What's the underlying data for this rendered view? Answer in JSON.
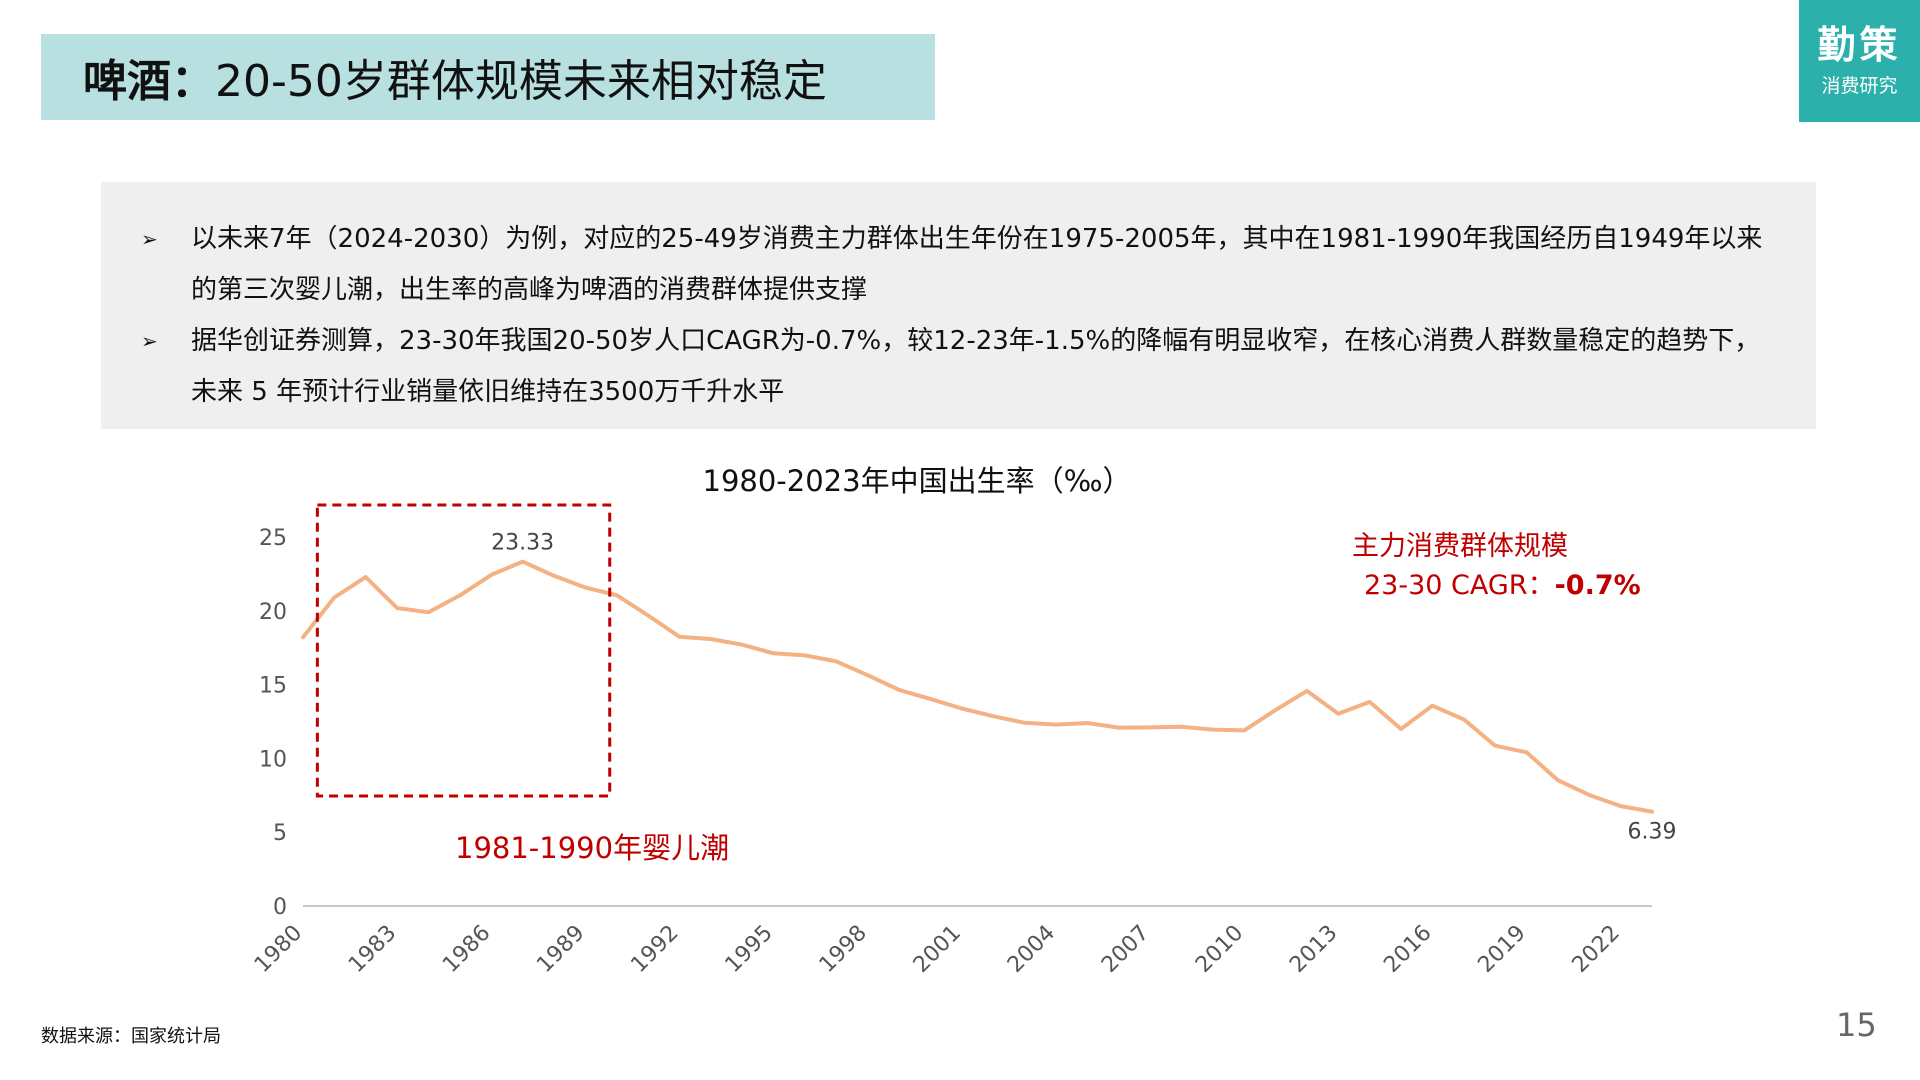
{
  "header": {
    "title_bold": "啤酒：",
    "title_rest": "20-50岁群体规模未来相对稳定"
  },
  "logo": {
    "main": "勤策",
    "sub": "消费研究"
  },
  "bullets": [
    {
      "mark": "➢",
      "text": "以未来7年（2024-2030）为例，对应的25-49岁消费主力群体出生年份在1975-2005年，其中在1981-1990年我国经历自1949年以来的第三次婴儿潮，出生率的高峰为啤酒的消费群体提供支撑"
    },
    {
      "mark": "➢",
      "text": "据华创证券测算，23-30年我国20-50岁人口CAGR为-0.7%，较12-23年-1.5%的降幅有明显收窄，在核心消费人群数量稳定的趋势下，未来 5 年预计行业销量依旧维持在3500万千升水平"
    }
  ],
  "chart_data": {
    "type": "line",
    "title": "1980-2023年中国出生率（‰）",
    "xlabel": "",
    "ylabel": "",
    "ylim": [
      0,
      25
    ],
    "yticks": [
      "0",
      "5",
      "10",
      "15",
      "20",
      "25"
    ],
    "xticks": [
      "1980",
      "1983",
      "1986",
      "1989",
      "1992",
      "1995",
      "1998",
      "2001",
      "2004",
      "2007",
      "2010",
      "2013",
      "2016",
      "2019",
      "2022"
    ],
    "grid": false,
    "legend": "none",
    "series_color": "#f4b183",
    "x": [
      1980,
      1981,
      1982,
      1983,
      1984,
      1985,
      1986,
      1987,
      1988,
      1989,
      1990,
      1991,
      1992,
      1993,
      1994,
      1995,
      1996,
      1997,
      1998,
      1999,
      2000,
      2001,
      2002,
      2003,
      2004,
      2005,
      2006,
      2007,
      2008,
      2009,
      2010,
      2011,
      2012,
      2013,
      2014,
      2015,
      2016,
      2017,
      2018,
      2019,
      2020,
      2021,
      2022,
      2023
    ],
    "y": [
      18.21,
      20.91,
      22.28,
      20.19,
      19.9,
      21.04,
      22.43,
      23.33,
      22.37,
      21.58,
      21.06,
      19.68,
      18.24,
      18.09,
      17.7,
      17.12,
      16.98,
      16.57,
      15.64,
      14.64,
      14.03,
      13.38,
      12.86,
      12.41,
      12.29,
      12.4,
      12.09,
      12.1,
      12.14,
      11.95,
      11.9,
      13.27,
      14.57,
      13.03,
      13.83,
      11.99,
      13.57,
      12.64,
      10.86,
      10.41,
      8.52,
      7.52,
      6.77,
      6.39
    ],
    "data_labels": [
      {
        "year": 1987,
        "text": "23.33"
      },
      {
        "year": 2023,
        "text": "6.39"
      }
    ],
    "highlight": {
      "from": 1981,
      "to": 1990,
      "label": "1981-1990年婴儿潮",
      "color": "#c00000"
    },
    "annotation": {
      "line1": "主力消费群体规模",
      "line2_prefix": "23-30 CAGR：",
      "line2_value": "-0.7%",
      "color": "#c00000"
    }
  },
  "footer": {
    "source": "数据来源：国家统计局",
    "page": "15"
  }
}
